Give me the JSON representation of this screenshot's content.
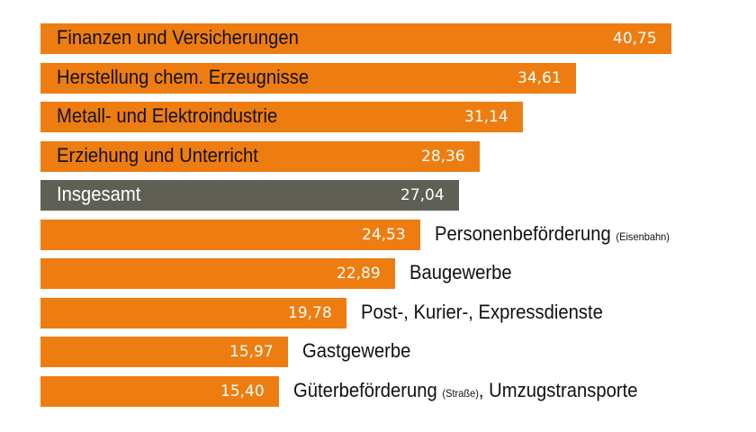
{
  "chart_data": {
    "type": "bar",
    "orientation": "horizontal",
    "categories": [
      "Finanzen und Versicherungen",
      "Herstellung chem. Erzeugnisse",
      "Metall- und Elektroindustrie",
      "Erziehung und Unterricht",
      "Insgesamt",
      "Personenbeförderung (Eisenbahn)",
      "Baugewerbe",
      "Post-, Kurier-, Expressdienste",
      "Gastgewerbe",
      "Güterbeförderung (Straße), Umzugstransporte"
    ],
    "labels": [
      {
        "text": "Finanzen und Versicherungen",
        "note": "",
        "suffix": ""
      },
      {
        "text": "Herstellung chem. Erzeugnisse",
        "note": "",
        "suffix": ""
      },
      {
        "text": "Metall- und Elektroindustrie",
        "note": "",
        "suffix": ""
      },
      {
        "text": "Erziehung und Unterricht",
        "note": "",
        "suffix": ""
      },
      {
        "text": "Insgesamt",
        "note": "",
        "suffix": ""
      },
      {
        "text": "Personenbeförderung",
        "note": "(Eisenbahn)",
        "suffix": ""
      },
      {
        "text": "Baugewerbe",
        "note": "",
        "suffix": ""
      },
      {
        "text": "Post-, Kurier-, Expressdienste",
        "note": "",
        "suffix": ""
      },
      {
        "text": "Gastgewerbe",
        "note": "",
        "suffix": ""
      },
      {
        "text": "Güterbeförderung",
        "note": "(Straße)",
        "suffix": ", Umzugstransporte"
      }
    ],
    "values": [
      40.75,
      34.61,
      31.14,
      28.36,
      27.04,
      24.53,
      22.89,
      19.78,
      15.97,
      15.4
    ],
    "value_labels": [
      "40,75",
      "34,61",
      "31,14",
      "28,36",
      "27,04",
      "24,53",
      "22,89",
      "19,78",
      "15,97",
      "15,40"
    ],
    "highlight_index": 4,
    "colors": {
      "bar": "#EE7D11",
      "highlight": "#5F5F55",
      "value_text": "#FFFFFF"
    },
    "xlim": [
      0,
      40.75
    ],
    "title": "",
    "xlabel": "",
    "ylabel": "",
    "grid": false,
    "legend": "none"
  }
}
